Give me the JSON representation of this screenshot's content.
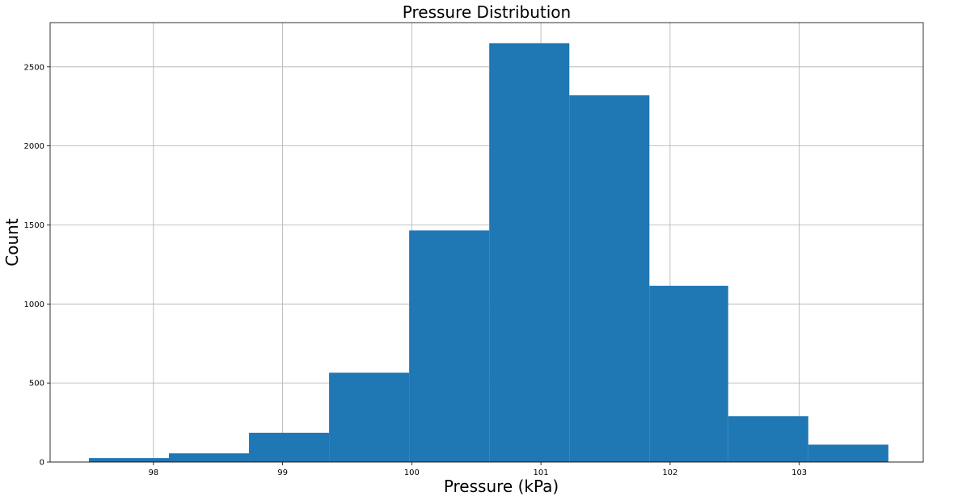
{
  "chart_data": {
    "type": "bar",
    "title": "Pressure Distribution",
    "xlabel": "Pressure (kPa)",
    "ylabel": "Count",
    "bin_edges": [
      97.5,
      98.12,
      98.74,
      99.36,
      99.98,
      100.6,
      101.22,
      101.84,
      102.45,
      103.07,
      103.69
    ],
    "values": [
      25,
      55,
      185,
      565,
      1465,
      2650,
      2320,
      1115,
      290,
      110
    ],
    "xlim": [
      97.2,
      103.96
    ],
    "ylim": [
      0,
      2780
    ],
    "xticks": [
      98,
      99,
      100,
      101,
      102,
      103
    ],
    "yticks": [
      0,
      500,
      1000,
      1500,
      2000,
      2500
    ],
    "grid": true,
    "bar_color": "#1f77b4"
  }
}
